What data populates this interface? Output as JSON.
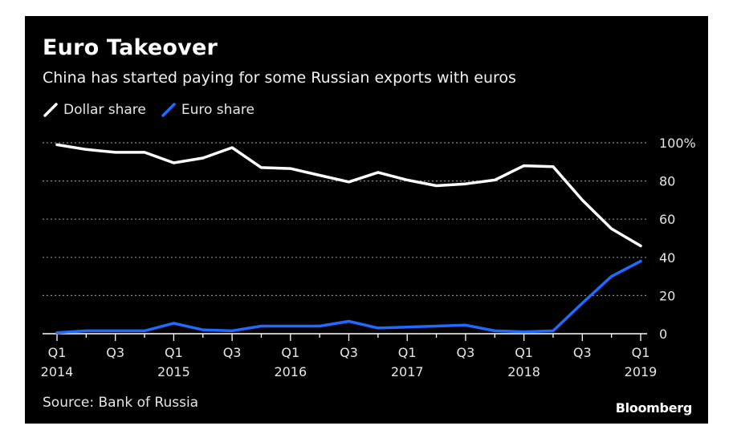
{
  "chart_data": {
    "type": "line",
    "title": "Euro Takeover",
    "subtitle": "China has started paying for some Russian exports with euros",
    "xlabel": "",
    "ylabel": "",
    "categories": [
      "Q1 2014",
      "Q2 2014",
      "Q3 2014",
      "Q4 2014",
      "Q1 2015",
      "Q2 2015",
      "Q3 2015",
      "Q4 2015",
      "Q1 2016",
      "Q2 2016",
      "Q3 2016",
      "Q4 2016",
      "Q1 2017",
      "Q2 2017",
      "Q3 2017",
      "Q4 2017",
      "Q1 2018",
      "Q2 2018",
      "Q3 2018",
      "Q4 2018",
      "Q1 2019"
    ],
    "x_tick_labels": [
      {
        "index": 0,
        "quarter": "Q1",
        "year": "2014"
      },
      {
        "index": 2,
        "quarter": "Q3",
        "year": ""
      },
      {
        "index": 4,
        "quarter": "Q1",
        "year": "2015"
      },
      {
        "index": 6,
        "quarter": "Q3",
        "year": ""
      },
      {
        "index": 8,
        "quarter": "Q1",
        "year": "2016"
      },
      {
        "index": 10,
        "quarter": "Q3",
        "year": ""
      },
      {
        "index": 12,
        "quarter": "Q1",
        "year": "2017"
      },
      {
        "index": 14,
        "quarter": "Q3",
        "year": ""
      },
      {
        "index": 16,
        "quarter": "Q1",
        "year": "2018"
      },
      {
        "index": 18,
        "quarter": "Q3",
        "year": ""
      },
      {
        "index": 20,
        "quarter": "Q1",
        "year": "2019"
      }
    ],
    "series": [
      {
        "name": "Dollar share",
        "color": "#ffffff",
        "values": [
          99,
          96.5,
          95,
          95,
          89.5,
          92,
          97.5,
          87,
          86.5,
          83,
          79.5,
          84.5,
          80.5,
          77.5,
          78.5,
          80.5,
          88,
          87.5,
          70,
          55,
          46
        ]
      },
      {
        "name": "Euro share",
        "color": "#1f6bff",
        "values": [
          0.5,
          1.5,
          1.5,
          1.5,
          5.5,
          2,
          1.5,
          4,
          4,
          4,
          6.5,
          3,
          3.5,
          4,
          4.5,
          1.5,
          1,
          1.5,
          16,
          30,
          38
        ]
      }
    ],
    "ylim": [
      0,
      100
    ],
    "y_ticks": [
      {
        "value": 0,
        "label": "0"
      },
      {
        "value": 20,
        "label": "20"
      },
      {
        "value": 40,
        "label": "40"
      },
      {
        "value": 60,
        "label": "60"
      },
      {
        "value": 80,
        "label": "80"
      },
      {
        "value": 100,
        "label": "100%"
      }
    ],
    "y_axis_side": "right",
    "grid": true,
    "legend_position": "top-left"
  },
  "source": "Source: Bank of Russia",
  "brand": "Bloomberg"
}
